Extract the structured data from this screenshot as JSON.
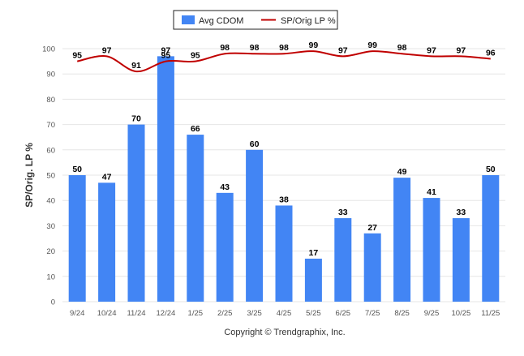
{
  "chart_data": {
    "type": "bar",
    "categories": [
      "9/24",
      "10/24",
      "11/24",
      "12/24",
      "1/25",
      "2/25",
      "3/25",
      "4/25",
      "5/25",
      "6/25",
      "7/25",
      "8/25",
      "9/25",
      "10/25",
      "11/25"
    ],
    "series": [
      {
        "name": "Avg CDOM",
        "type": "bar",
        "color": "#4285f4",
        "values": [
          50,
          47,
          70,
          97,
          66,
          43,
          60,
          38,
          17,
          33,
          27,
          49,
          41,
          33,
          50
        ]
      },
      {
        "name": "SP/Orig LP %",
        "type": "line",
        "color": "#c00000",
        "values": [
          95,
          97,
          91,
          95,
          95,
          98,
          98,
          98,
          99,
          97,
          99,
          98,
          97,
          97,
          96
        ]
      }
    ],
    "ylabel": "SP/Orig. LP %",
    "xlabel": "",
    "ylim": [
      0,
      100
    ],
    "yticks": [
      0,
      10,
      20,
      30,
      40,
      50,
      60,
      70,
      80,
      90,
      100
    ],
    "grid": true,
    "legend_position": "top-center"
  },
  "footer": {
    "copyright": "Copyright © Trendgraphix, Inc."
  }
}
